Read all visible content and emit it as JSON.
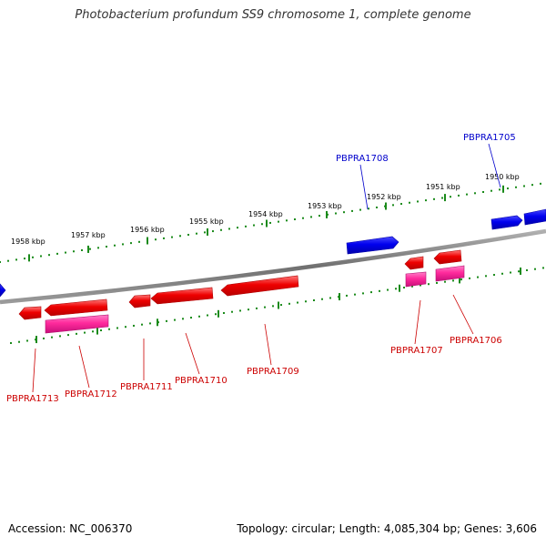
{
  "title": "Photobacterium profundum SS9 chromosome 1, complete genome",
  "footer": {
    "accession": "Accession: NC_006370",
    "info": "Topology: circular; Length: 4,085,304 bp; Genes: 3,606"
  },
  "colors": {
    "background": "#ffffff",
    "backbone": "#808080",
    "ruler": "#1a8a1a",
    "forward_gene": "#0000ff",
    "reverse_gene": "#ff0000",
    "rna_gene": "#ff1493",
    "forward_label": "#0000cc",
    "reverse_label": "#cc0000"
  },
  "scale_labels": [
    "1950 kbp",
    "1951 kbp",
    "1952 kbp",
    "1953 kbp",
    "1954 kbp",
    "1955 kbp",
    "1956 kbp",
    "1957 kbp",
    "1958 kbp"
  ],
  "gene_labels": {
    "forward": [
      "PBPRA1705",
      "PBPRA1708"
    ],
    "reverse": [
      "PBPRA1706",
      "PBPRA1707",
      "PBPRA1709",
      "PBPRA1710",
      "PBPRA1711",
      "PBPRA1712",
      "PBPRA1713"
    ]
  }
}
